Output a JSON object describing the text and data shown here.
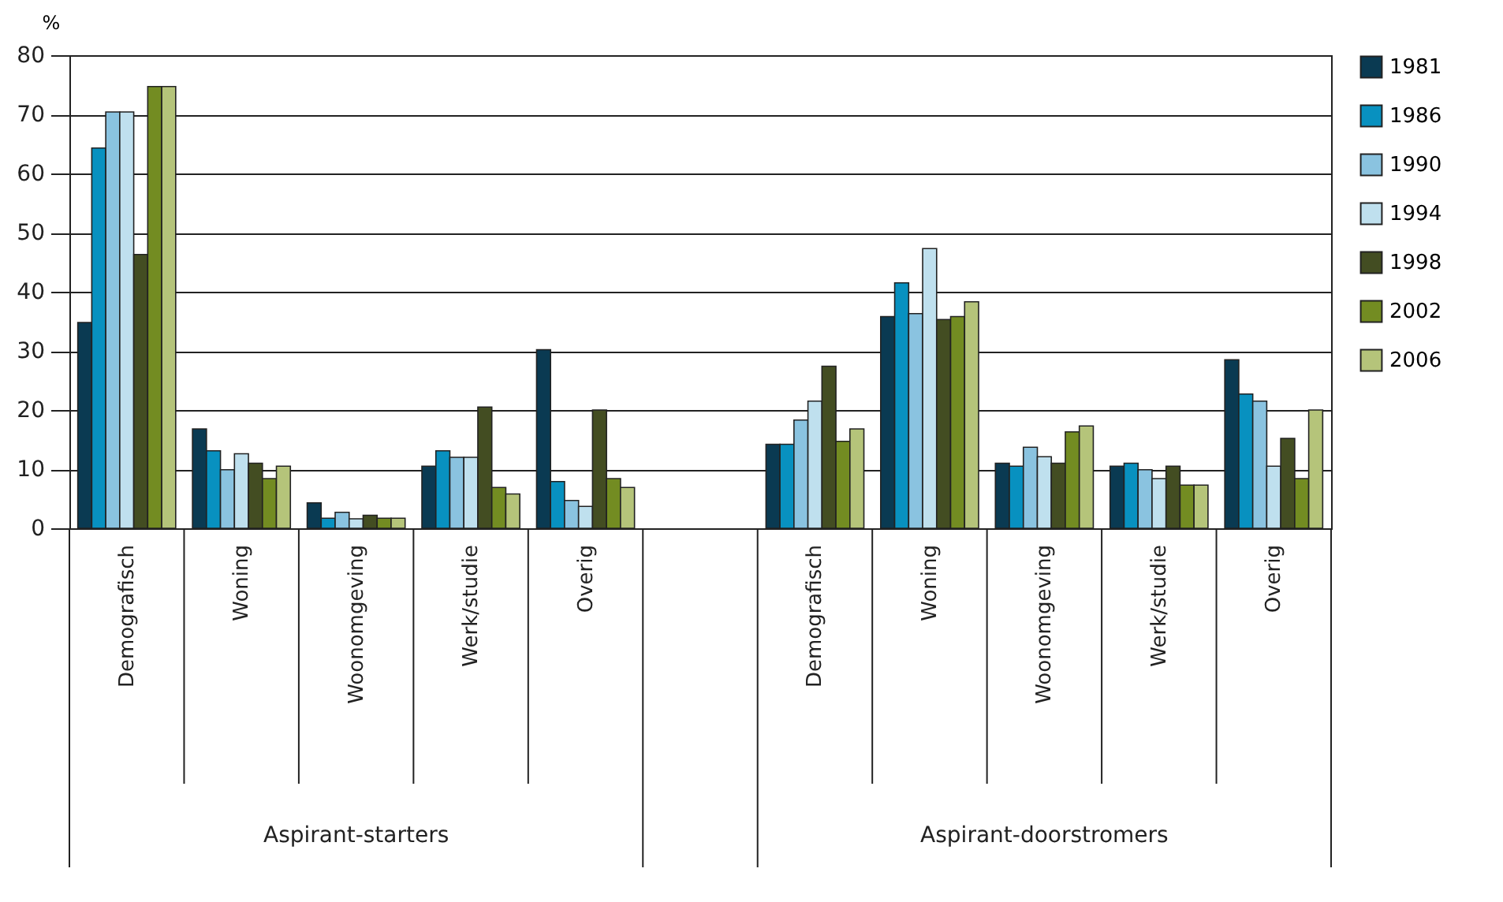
{
  "chart_data": {
    "type": "bar",
    "ylabel": "%",
    "categories": [
      "Demografisch",
      "Woning",
      "Woonomgeving",
      "Werk/studie",
      "Overig",
      null,
      "Demografisch",
      "Woning",
      "Woonomgeving",
      "Werk/studie",
      "Overig"
    ],
    "series": [
      {
        "name": "1981",
        "color": "#0a3a52",
        "values": [
          34.8,
          16.8,
          4.3,
          10.5,
          30.2,
          null,
          14.2,
          35.8,
          11.0,
          10.5,
          28.5
        ]
      },
      {
        "name": "1986",
        "color": "#0891c0",
        "values": [
          64.3,
          13.1,
          1.7,
          13.1,
          7.9,
          null,
          14.2,
          41.5,
          10.5,
          11.0,
          22.7
        ]
      },
      {
        "name": "1990",
        "color": "#8ac3e0",
        "values": [
          70.4,
          9.9,
          2.7,
          12.0,
          4.7,
          null,
          18.3,
          36.3,
          13.7,
          9.9,
          21.5
        ]
      },
      {
        "name": "1994",
        "color": "#bfe0ee",
        "values": [
          70.4,
          12.6,
          1.6,
          12.0,
          3.7,
          null,
          21.5,
          47.3,
          12.1,
          8.4,
          10.5
        ]
      },
      {
        "name": "1998",
        "color": "#434d22",
        "values": [
          46.3,
          11.0,
          2.2,
          20.5,
          20.0,
          null,
          27.4,
          35.3,
          11.0,
          10.5,
          15.2
        ]
      },
      {
        "name": "2002",
        "color": "#738c22",
        "values": [
          74.7,
          8.4,
          1.7,
          6.9,
          8.4,
          null,
          14.7,
          35.8,
          16.3,
          7.3,
          8.4
        ]
      },
      {
        "name": "2006",
        "color": "#b5c47a",
        "values": [
          74.7,
          10.5,
          1.7,
          5.8,
          6.9,
          null,
          16.8,
          38.3,
          17.3,
          7.3,
          20.0
        ]
      }
    ],
    "annotations": [
      "Aspirant-starters",
      "Aspirant-doorstromers"
    ],
    "ylim": [
      0,
      80
    ],
    "yticks": [
      0,
      10,
      20,
      30,
      40,
      50,
      60,
      70,
      80
    ],
    "grid": "y",
    "legend": "top right"
  }
}
